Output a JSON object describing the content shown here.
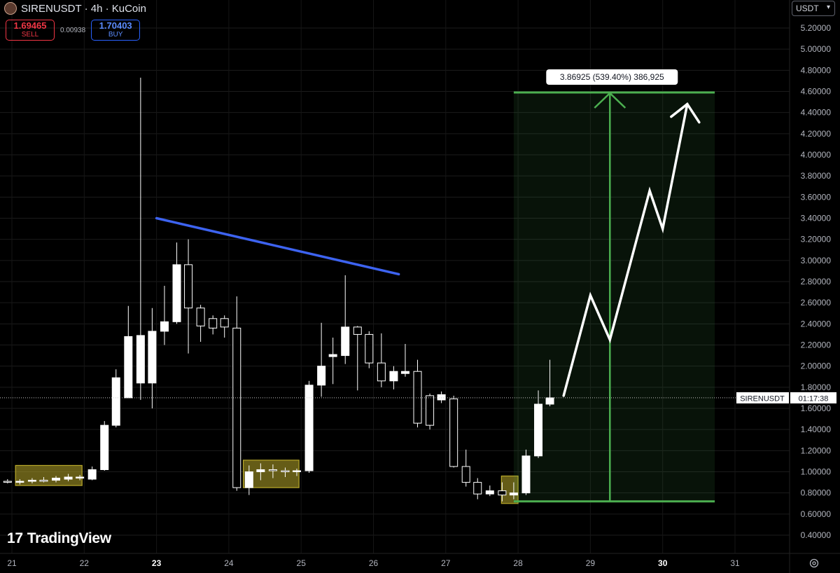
{
  "header": {
    "title": "SIRENUSDT · 4h · KuCoin",
    "currency": "USDT"
  },
  "quote": {
    "sell_price": "1.69465",
    "sell_label": "SELL",
    "spread": "0.00938",
    "buy_price": "1.70403",
    "buy_label": "BUY"
  },
  "branding": {
    "name": "TradingView",
    "mark": "17"
  },
  "colors": {
    "background": "#000000",
    "candle": "#ffffff",
    "trendline": "#3d63f0",
    "target_zone": "#4caf50",
    "accumulation_box": "#b8a82a"
  },
  "chart_data": {
    "type": "candlestick",
    "symbol": "SIRENUSDT",
    "interval": "4h",
    "exchange": "KuCoin",
    "ylim": [
      0.25,
      5.35
    ],
    "y_ticks": [
      0.4,
      0.6,
      0.8,
      1.0,
      1.2,
      1.4,
      1.6,
      1.8,
      2.0,
      2.2,
      2.4,
      2.6,
      2.8,
      3.0,
      3.2,
      3.4,
      3.6,
      3.8,
      4.0,
      4.2,
      4.4,
      4.6,
      4.8,
      5.0,
      5.2
    ],
    "x_ticks": [
      {
        "label": "21",
        "day": 21,
        "bold": false
      },
      {
        "label": "22",
        "day": 22,
        "bold": false
      },
      {
        "label": "23",
        "day": 23,
        "bold": true
      },
      {
        "label": "24",
        "day": 24,
        "bold": false
      },
      {
        "label": "25",
        "day": 25,
        "bold": false
      },
      {
        "label": "26",
        "day": 26,
        "bold": false
      },
      {
        "label": "27",
        "day": 27,
        "bold": false
      },
      {
        "label": "28",
        "day": 28,
        "bold": false
      },
      {
        "label": "29",
        "day": 29,
        "bold": false
      },
      {
        "label": "30",
        "day": 30,
        "bold": true
      },
      {
        "label": "31",
        "day": 31,
        "bold": false
      }
    ],
    "xlim_days": [
      20.93,
      31.93
    ],
    "current_price": 1.7,
    "current_label": "SIRENUSDT",
    "countdown": "01:17:38",
    "candles": [
      {
        "t": 20.94,
        "o": 0.91,
        "h": 0.93,
        "l": 0.89,
        "c": 0.9
      },
      {
        "t": 21.11,
        "o": 0.9,
        "h": 0.93,
        "l": 0.88,
        "c": 0.91
      },
      {
        "t": 21.28,
        "o": 0.91,
        "h": 0.94,
        "l": 0.89,
        "c": 0.92
      },
      {
        "t": 21.44,
        "o": 0.92,
        "h": 0.95,
        "l": 0.9,
        "c": 0.91
      },
      {
        "t": 21.61,
        "o": 0.92,
        "h": 0.96,
        "l": 0.9,
        "c": 0.94
      },
      {
        "t": 21.78,
        "o": 0.93,
        "h": 0.98,
        "l": 0.91,
        "c": 0.95
      },
      {
        "t": 21.94,
        "o": 0.94,
        "h": 0.97,
        "l": 0.92,
        "c": 0.95
      },
      {
        "t": 22.11,
        "o": 0.93,
        "h": 1.05,
        "l": 0.92,
        "c": 1.02
      },
      {
        "t": 22.28,
        "o": 1.02,
        "h": 1.48,
        "l": 1.01,
        "c": 1.44
      },
      {
        "t": 22.44,
        "o": 1.44,
        "h": 1.97,
        "l": 1.42,
        "c": 1.89
      },
      {
        "t": 22.61,
        "o": 1.7,
        "h": 2.57,
        "l": 1.7,
        "c": 2.28
      },
      {
        "t": 22.78,
        "o": 1.84,
        "h": 4.73,
        "l": 1.68,
        "c": 2.29
      },
      {
        "t": 22.94,
        "o": 1.84,
        "h": 2.55,
        "l": 1.6,
        "c": 2.33
      },
      {
        "t": 23.11,
        "o": 2.33,
        "h": 2.76,
        "l": 2.2,
        "c": 2.42
      },
      {
        "t": 23.28,
        "o": 2.42,
        "h": 3.17,
        "l": 2.4,
        "c": 2.96
      },
      {
        "t": 23.44,
        "o": 2.96,
        "h": 3.2,
        "l": 2.12,
        "c": 2.55
      },
      {
        "t": 23.61,
        "o": 2.55,
        "h": 2.58,
        "l": 2.23,
        "c": 2.38
      },
      {
        "t": 23.78,
        "o": 2.45,
        "h": 2.48,
        "l": 2.3,
        "c": 2.36
      },
      {
        "t": 23.94,
        "o": 2.45,
        "h": 2.48,
        "l": 2.27,
        "c": 2.37
      },
      {
        "t": 24.11,
        "o": 2.36,
        "h": 2.66,
        "l": 0.82,
        "c": 0.85
      },
      {
        "t": 24.28,
        "o": 0.85,
        "h": 1.06,
        "l": 0.78,
        "c": 1.0
      },
      {
        "t": 24.44,
        "o": 1.0,
        "h": 1.08,
        "l": 0.92,
        "c": 1.02
      },
      {
        "t": 24.61,
        "o": 1.02,
        "h": 1.07,
        "l": 0.94,
        "c": 1.01
      },
      {
        "t": 24.78,
        "o": 1.01,
        "h": 1.04,
        "l": 0.95,
        "c": 1.0
      },
      {
        "t": 24.94,
        "o": 1.0,
        "h": 1.03,
        "l": 0.96,
        "c": 1.01
      },
      {
        "t": 25.11,
        "o": 1.01,
        "h": 1.86,
        "l": 0.99,
        "c": 1.82
      },
      {
        "t": 25.28,
        "o": 1.82,
        "h": 2.41,
        "l": 1.71,
        "c": 2.0
      },
      {
        "t": 25.44,
        "o": 2.09,
        "h": 2.27,
        "l": 1.83,
        "c": 2.11
      },
      {
        "t": 25.61,
        "o": 2.1,
        "h": 2.86,
        "l": 2.02,
        "c": 2.37
      },
      {
        "t": 25.78,
        "o": 2.37,
        "h": 2.38,
        "l": 1.77,
        "c": 2.3
      },
      {
        "t": 25.94,
        "o": 2.3,
        "h": 2.33,
        "l": 1.98,
        "c": 2.03
      },
      {
        "t": 26.11,
        "o": 2.03,
        "h": 2.31,
        "l": 1.8,
        "c": 1.86
      },
      {
        "t": 26.28,
        "o": 1.86,
        "h": 2.0,
        "l": 1.78,
        "c": 1.95
      },
      {
        "t": 26.44,
        "o": 1.93,
        "h": 2.21,
        "l": 1.9,
        "c": 1.95
      },
      {
        "t": 26.61,
        "o": 1.95,
        "h": 2.06,
        "l": 1.42,
        "c": 1.46
      },
      {
        "t": 26.78,
        "o": 1.72,
        "h": 1.74,
        "l": 1.4,
        "c": 1.44
      },
      {
        "t": 26.94,
        "o": 1.68,
        "h": 1.76,
        "l": 1.65,
        "c": 1.73
      },
      {
        "t": 27.11,
        "o": 1.69,
        "h": 1.72,
        "l": 1.04,
        "c": 1.05
      },
      {
        "t": 27.28,
        "o": 1.05,
        "h": 1.21,
        "l": 0.86,
        "c": 0.9
      },
      {
        "t": 27.44,
        "o": 0.9,
        "h": 0.94,
        "l": 0.74,
        "c": 0.79
      },
      {
        "t": 27.61,
        "o": 0.79,
        "h": 0.87,
        "l": 0.77,
        "c": 0.82
      },
      {
        "t": 27.78,
        "o": 0.82,
        "h": 0.9,
        "l": 0.72,
        "c": 0.78
      },
      {
        "t": 27.94,
        "o": 0.78,
        "h": 0.9,
        "l": 0.74,
        "c": 0.8
      },
      {
        "t": 28.11,
        "o": 0.8,
        "h": 1.21,
        "l": 0.78,
        "c": 1.15
      },
      {
        "t": 28.28,
        "o": 1.15,
        "h": 1.77,
        "l": 1.13,
        "c": 1.64
      },
      {
        "t": 28.44,
        "o": 1.64,
        "h": 2.06,
        "l": 1.62,
        "c": 1.7
      }
    ],
    "trendline": {
      "from": {
        "t": 23.0,
        "p": 3.4
      },
      "to": {
        "t": 26.35,
        "p": 2.87
      }
    },
    "accumulation_boxes": [
      {
        "t0": 21.05,
        "t1": 21.97,
        "p0": 0.87,
        "p1": 1.06
      },
      {
        "t0": 24.2,
        "t1": 24.97,
        "p0": 0.85,
        "p1": 1.11
      },
      {
        "t0": 28.0,
        "t1": 27.77,
        "p0": 0.7,
        "p1": 0.96,
        "note_swap": true
      }
    ],
    "target_zone": {
      "t0": 27.94,
      "t1": 30.72,
      "bottom": 0.72,
      "top": 4.59,
      "arrow_t": 29.27
    },
    "target_label": "3.86925 (539.40%) 386,925",
    "projection_path": [
      {
        "t": 28.63,
        "p": 1.72
      },
      {
        "t": 29.0,
        "p": 2.67
      },
      {
        "t": 29.27,
        "p": 2.25
      },
      {
        "t": 29.82,
        "p": 3.66
      },
      {
        "t": 30.0,
        "p": 3.3
      },
      {
        "t": 30.34,
        "p": 4.48
      }
    ]
  }
}
